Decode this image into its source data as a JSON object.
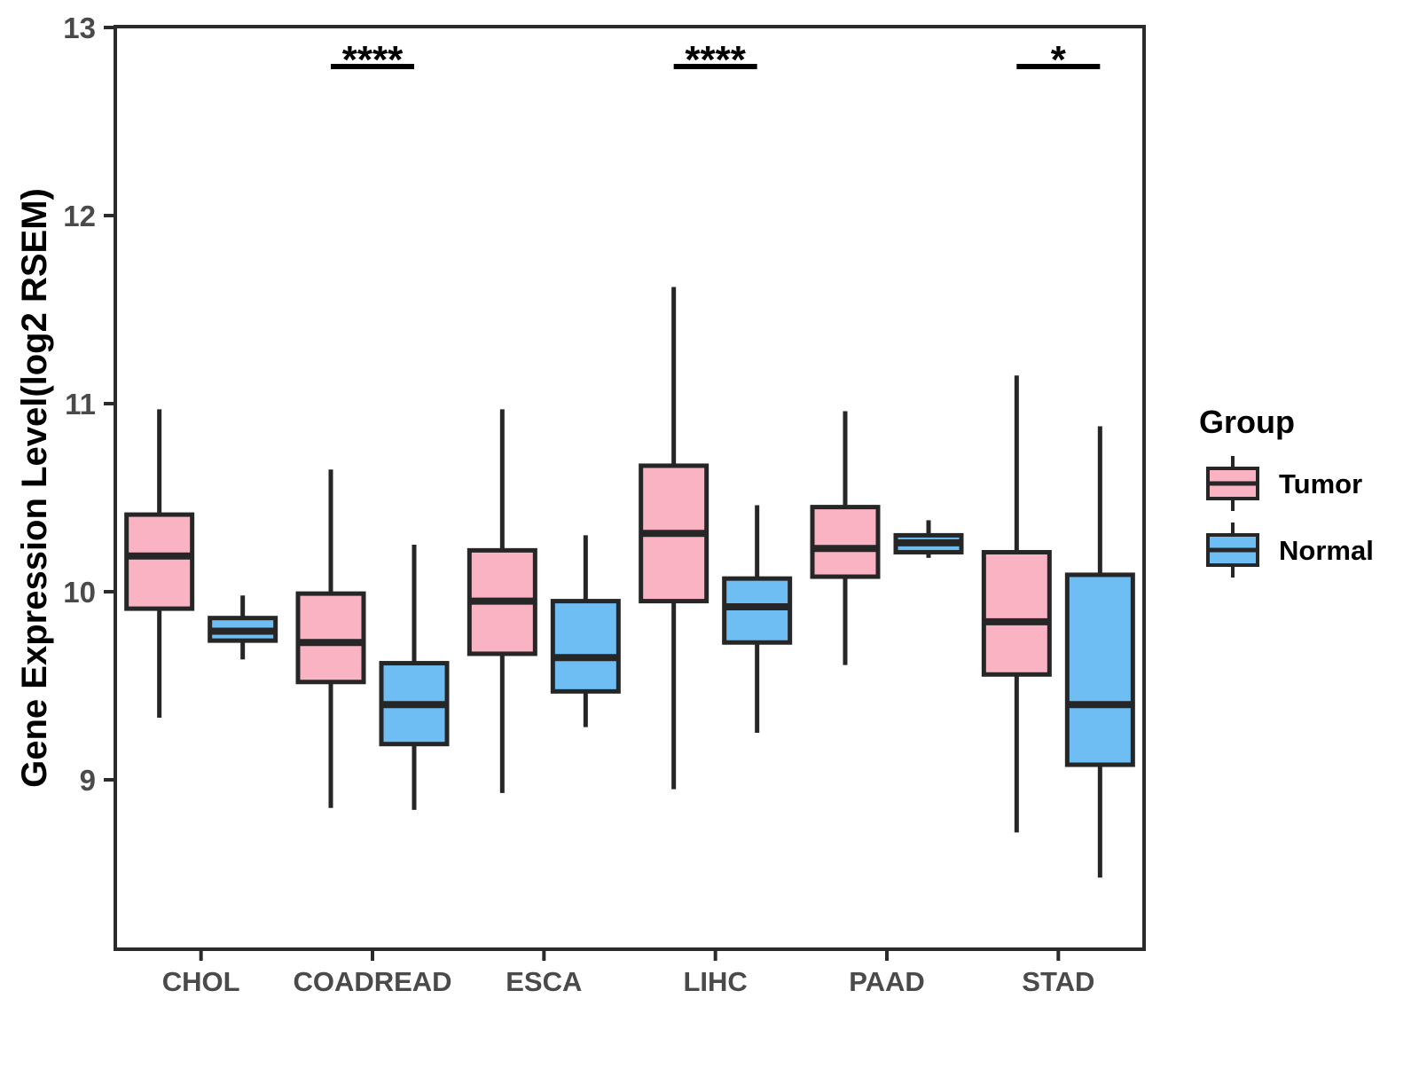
{
  "figure": {
    "background": "#ffffff",
    "ylabel": "Gene Expression Level(log2 RSEM)"
  },
  "legend": {
    "title": "Group",
    "position": "right",
    "entries": [
      {
        "label": "Tumor",
        "color": "#F9B3C2"
      },
      {
        "label": "Normal",
        "color": "#6FBEF3"
      }
    ]
  },
  "style": {
    "box_border": "#262626",
    "whisker": "#262626",
    "median": "#262626",
    "panel_border": "#2B2B2B",
    "axis_text": "#4A4A4A",
    "annotation": "#000000",
    "tumor_fill": "#F9B3C2",
    "normal_fill": "#6FBEF3"
  },
  "chart_data": {
    "type": "boxplot",
    "title": "",
    "xlabel": "",
    "ylabel": "Gene Expression Level(log2 RSEM)",
    "grid": false,
    "legend_position": "right",
    "categories": [
      "CHOL",
      "COADREAD",
      "ESCA",
      "LIHC",
      "PAAD",
      "STAD"
    ],
    "yticks": [
      9,
      10,
      11,
      12,
      13
    ],
    "ylim": [
      8.1,
      13.05
    ],
    "groups": [
      "Tumor",
      "Normal"
    ],
    "series": [
      {
        "name": "Tumor",
        "color": "#F9B3C2",
        "boxes": [
          {
            "category": "CHOL",
            "whislo": 9.33,
            "q1": 9.91,
            "med": 10.19,
            "q3": 10.41,
            "whishi": 10.97
          },
          {
            "category": "COADREAD",
            "whislo": 8.85,
            "q1": 9.52,
            "med": 9.73,
            "q3": 9.99,
            "whishi": 10.65
          },
          {
            "category": "ESCA",
            "whislo": 8.93,
            "q1": 9.67,
            "med": 9.95,
            "q3": 10.22,
            "whishi": 10.97
          },
          {
            "category": "LIHC",
            "whislo": 8.95,
            "q1": 9.95,
            "med": 10.31,
            "q3": 10.67,
            "whishi": 11.62
          },
          {
            "category": "PAAD",
            "whislo": 9.61,
            "q1": 10.08,
            "med": 10.23,
            "q3": 10.45,
            "whishi": 10.96
          },
          {
            "category": "STAD",
            "whislo": 8.72,
            "q1": 9.56,
            "med": 9.84,
            "q3": 10.21,
            "whishi": 11.15
          }
        ]
      },
      {
        "name": "Normal",
        "color": "#6FBEF3",
        "boxes": [
          {
            "category": "CHOL",
            "whislo": 9.64,
            "q1": 9.74,
            "med": 9.79,
            "q3": 9.86,
            "whishi": 9.98
          },
          {
            "category": "COADREAD",
            "whislo": 8.84,
            "q1": 9.19,
            "med": 9.4,
            "q3": 9.62,
            "whishi": 10.25
          },
          {
            "category": "ESCA",
            "whislo": 9.28,
            "q1": 9.47,
            "med": 9.65,
            "q3": 9.95,
            "whishi": 10.3
          },
          {
            "category": "LIHC",
            "whislo": 9.25,
            "q1": 9.73,
            "med": 9.92,
            "q3": 10.07,
            "whishi": 10.46
          },
          {
            "category": "PAAD",
            "whislo": 10.18,
            "q1": 10.21,
            "med": 10.26,
            "q3": 10.3,
            "whishi": 10.38
          },
          {
            "category": "STAD",
            "whislo": 8.48,
            "q1": 9.08,
            "med": 9.4,
            "q3": 10.09,
            "whishi": 10.88
          }
        ]
      }
    ],
    "significance": [
      {
        "category": "COADREAD",
        "label": "****"
      },
      {
        "category": "LIHC",
        "label": "****"
      },
      {
        "category": "STAD",
        "label": "*"
      }
    ]
  }
}
